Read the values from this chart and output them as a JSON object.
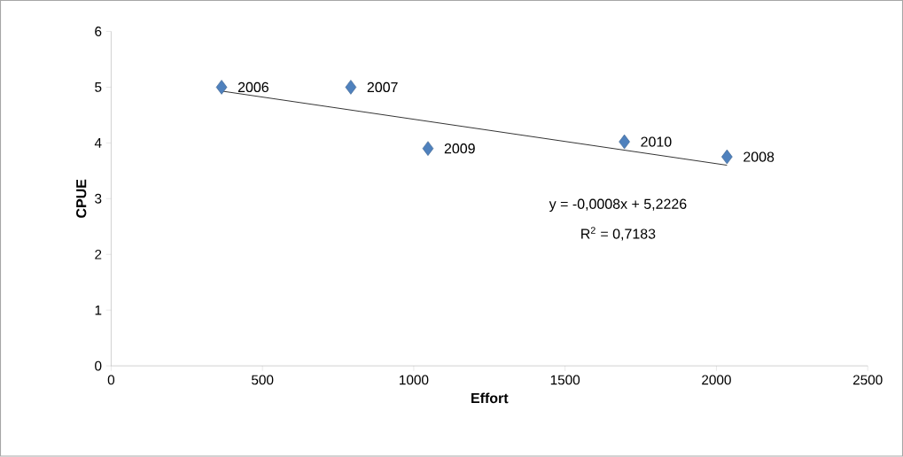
{
  "chart_data": {
    "type": "scatter",
    "xlabel": "Effort",
    "ylabel": "CPUE",
    "xlim": [
      0,
      2500
    ],
    "xticks": [
      0,
      500,
      1000,
      1500,
      2000,
      2500
    ],
    "ylim": [
      0,
      6
    ],
    "yticks": [
      0,
      1,
      2,
      3,
      4,
      5,
      6
    ],
    "marker": "diamond",
    "series": [
      {
        "color": "#4f81bd",
        "x": [
          365,
          792,
          1047,
          1696,
          2035
        ],
        "values": [
          5.0,
          5.0,
          3.9,
          4.02,
          3.75
        ]
      },
      {
        "type": "line",
        "marker": "none",
        "color": "#000000",
        "x": [
          365,
          2035
        ],
        "values": [
          4.93,
          3.6
        ]
      }
    ],
    "annotations": [
      {
        "text": "2006",
        "x": 365,
        "y": 5.0
      },
      {
        "text": "2007",
        "x": 792,
        "y": 5.0
      },
      {
        "text": "2009",
        "x": 1047,
        "y": 3.9
      },
      {
        "text": "2010",
        "x": 1696,
        "y": 4.02
      },
      {
        "text": "2008",
        "x": 2035,
        "y": 3.75
      },
      "y = -0,0008x + 5,2226",
      "R$^{2}$ = 0,7183"
    ]
  }
}
